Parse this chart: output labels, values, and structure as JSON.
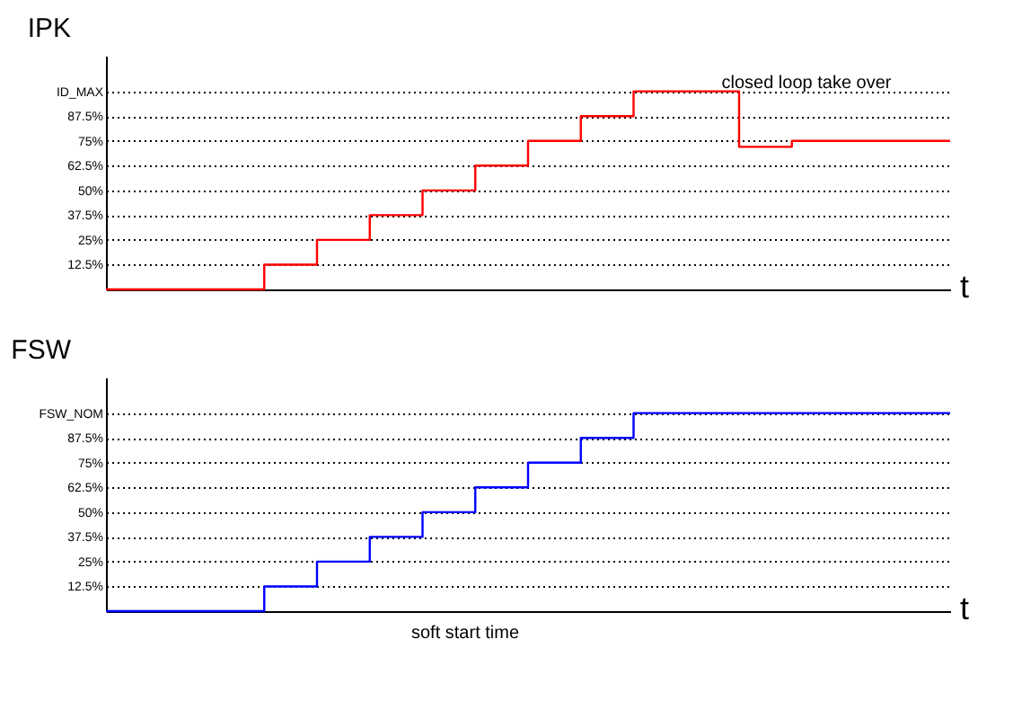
{
  "chart_data": [
    {
      "type": "step",
      "ylabel": "IPK",
      "xlabel": "t",
      "categories": [
        null,
        null,
        null,
        null,
        null,
        null,
        null,
        null,
        null,
        null,
        null,
        null,
        null,
        null,
        null,
        null,
        null
      ],
      "series": [
        {
          "color": "#ff0000",
          "values": [
            0,
            0,
            0,
            12.5,
            25,
            37.5,
            50,
            62.5,
            75,
            87.5,
            100,
            100,
            72,
            75,
            75,
            75,
            75
          ]
        }
      ],
      "ylim": [
        0,
        118
      ],
      "yticks": [
        {
          "value": 12.5,
          "label": "12.5%"
        },
        {
          "value": 25,
          "label": "25%"
        },
        {
          "value": 37.5,
          "label": "37.5%"
        },
        {
          "value": 50,
          "label": "50%"
        },
        {
          "value": 62.5,
          "label": "62.5%"
        },
        {
          "value": 75,
          "label": "75%"
        },
        {
          "value": 87.5,
          "label": "87.5%"
        },
        {
          "value": 100,
          "label": "ID_MAX"
        }
      ],
      "grid": "y",
      "line_style": "solid",
      "tick_labels": "y",
      "annotations": [
        "closed loop take over"
      ]
    },
    {
      "type": "step",
      "ylabel": "FSW",
      "xlabel": "t",
      "categories": [
        null,
        null,
        null,
        null,
        null,
        null,
        null,
        null,
        null,
        null,
        null,
        null,
        null,
        null,
        null,
        null,
        null
      ],
      "series": [
        {
          "color": "#0000ff",
          "values": [
            0,
            0,
            0,
            12.5,
            25,
            37.5,
            50,
            62.5,
            75,
            87.5,
            100,
            100,
            100,
            100,
            100,
            100,
            100
          ]
        }
      ],
      "ylim": [
        0,
        118
      ],
      "yticks": [
        {
          "value": 12.5,
          "label": "12.5%"
        },
        {
          "value": 25,
          "label": "25%"
        },
        {
          "value": 37.5,
          "label": "37.5%"
        },
        {
          "value": 50,
          "label": "50%"
        },
        {
          "value": 62.5,
          "label": "62.5%"
        },
        {
          "value": 75,
          "label": "75%"
        },
        {
          "value": 87.5,
          "label": "87.5%"
        },
        {
          "value": 100,
          "label": "FSW_NOM"
        }
      ],
      "grid": "y",
      "line_style": "solid",
      "tick_labels": "y",
      "annotations": [
        "soft start time"
      ]
    }
  ]
}
